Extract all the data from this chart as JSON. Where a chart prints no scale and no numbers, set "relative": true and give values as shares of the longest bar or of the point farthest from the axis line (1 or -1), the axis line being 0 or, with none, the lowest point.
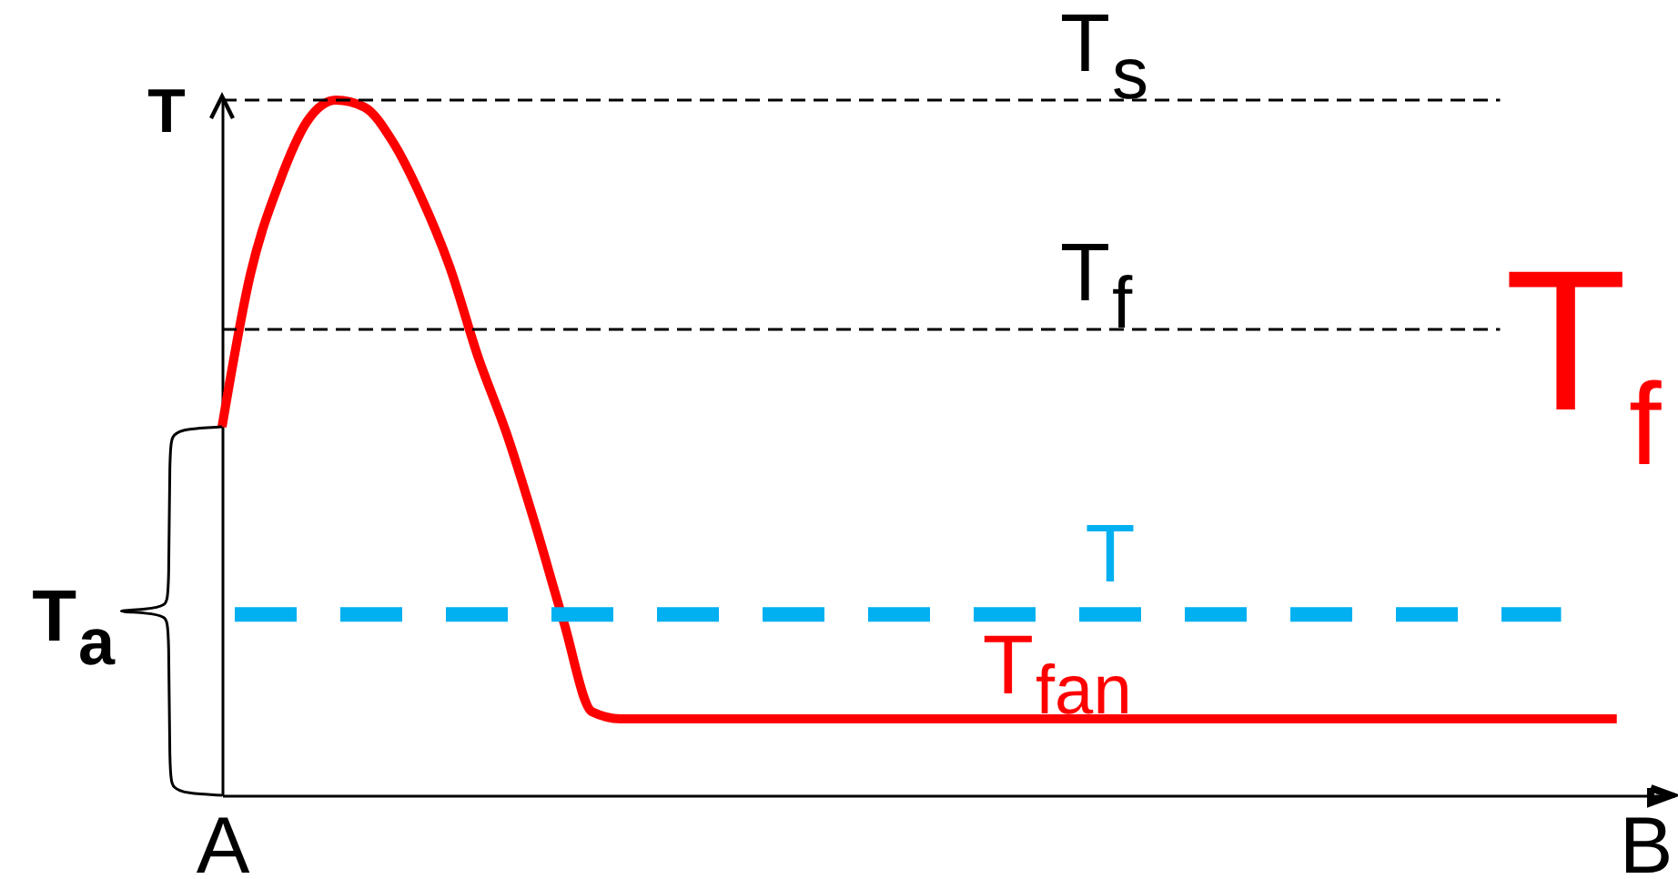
{
  "chart_data": {
    "type": "line",
    "relative": true,
    "ylabel": "T",
    "categories": [
      "A",
      null,
      null,
      null,
      null,
      null,
      null,
      null,
      null,
      null,
      null,
      null,
      null,
      null,
      null,
      null,
      null,
      null,
      null,
      null,
      null,
      null,
      null,
      null,
      null,
      null,
      null,
      null,
      null,
      null,
      null,
      null,
      null,
      null,
      null,
      null,
      null,
      null,
      null,
      null,
      null,
      null,
      null,
      null,
      null,
      null,
      null,
      null,
      null,
      null,
      "B"
    ],
    "series": [
      {
        "name": "T$_{fan}$",
        "color": "#ff0000",
        "values": [
          0.53,
          0.75,
          0.88,
          0.97,
          1,
          0.99,
          0.94,
          0.86,
          0.76,
          0.63,
          0.52,
          0.39,
          0.25,
          0.12,
          0.11,
          0.11,
          0.11,
          0.11,
          0.11,
          0.11,
          0.11,
          0.11,
          0.11,
          0.11,
          0.11,
          0.11,
          0.11,
          0.11,
          0.11,
          0.11,
          0.11,
          0.11,
          0.11,
          0.11,
          0.11,
          0.11,
          0.11,
          0.11,
          0.11,
          0.11,
          0.11,
          0.11,
          0.11,
          0.11,
          0.11,
          0.11,
          0.11,
          0.11,
          0.11,
          0.11,
          null
        ]
      }
    ],
    "tick_labels": "x",
    "ref_lines": [
      {
        "axis": "y",
        "value": 1,
        "label": "T$_{s}$",
        "line_style": "dashed"
      },
      {
        "axis": "y",
        "value": 0.67,
        "label": "T$_{f}$",
        "line_style": "dashed"
      },
      {
        "axis": "y",
        "value": 0.26,
        "label": "T",
        "color": "#00b0f0",
        "line_style": "dashed"
      }
    ],
    "annotations": [
      "T$_{a}$",
      "T$_{f}$"
    ]
  }
}
